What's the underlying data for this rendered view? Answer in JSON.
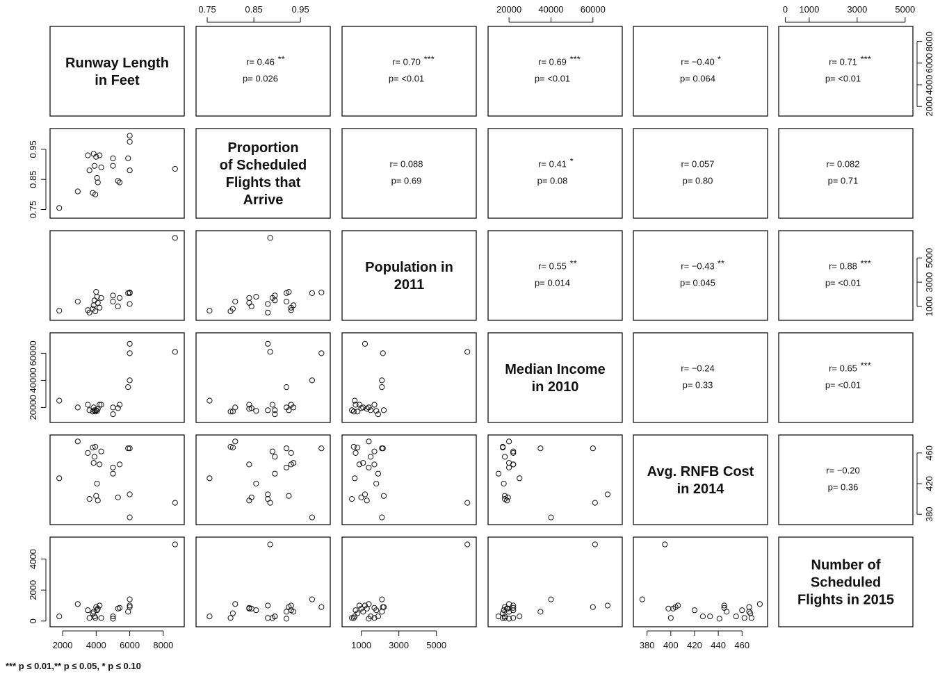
{
  "chart_data": {
    "type": "scatter",
    "variables": [
      {
        "label_lines": [
          "Runway Length",
          "in Feet"
        ],
        "ticks": [
          "2000",
          "4000",
          "6000",
          "8000"
        ]
      },
      {
        "label_lines": [
          "Proportion",
          "of Scheduled",
          "Flights that",
          "Arrive"
        ],
        "ticks": [
          "0.75",
          "0.85",
          "0.95"
        ]
      },
      {
        "label_lines": [
          "Population in",
          "2011"
        ],
        "ticks": [
          "1000",
          "3000",
          "5000"
        ]
      },
      {
        "label_lines": [
          "Median Income",
          "in 2010"
        ],
        "ticks": [
          "20000",
          "40000",
          "60000"
        ]
      },
      {
        "label_lines": [
          "Avg. RNFB Cost",
          "in 2014"
        ],
        "ticks": [
          "380",
          "400",
          "420",
          "440",
          "460"
        ]
      },
      {
        "label_lines": [
          "Number of",
          "Scheduled",
          "Flights in 2015"
        ],
        "ticks": [
          "0",
          "1000",
          "3000",
          "5000"
        ],
        "ticks_left": [
          "0",
          "2000",
          "4000"
        ]
      }
    ],
    "correlations": [
      {
        "pair": [
          0,
          1
        ],
        "r": "r= 0.46",
        "p": "p= 0.026",
        "stars": "**"
      },
      {
        "pair": [
          0,
          2
        ],
        "r": "r= 0.70",
        "p": "p= <0.01",
        "stars": "***"
      },
      {
        "pair": [
          0,
          3
        ],
        "r": "r= 0.69",
        "p": "p= <0.01",
        "stars": "***"
      },
      {
        "pair": [
          0,
          4
        ],
        "r": "r= −0.40",
        "p": "p= 0.064",
        "stars": "*"
      },
      {
        "pair": [
          0,
          5
        ],
        "r": "r= 0.71",
        "p": "p= <0.01",
        "stars": "***"
      },
      {
        "pair": [
          1,
          2
        ],
        "r": "r= 0.088",
        "p": "p= 0.69",
        "stars": ""
      },
      {
        "pair": [
          1,
          3
        ],
        "r": "r= 0.41",
        "p": "p= 0.08",
        "stars": "*"
      },
      {
        "pair": [
          1,
          4
        ],
        "r": "r= 0.057",
        "p": "p= 0.80",
        "stars": ""
      },
      {
        "pair": [
          1,
          5
        ],
        "r": "r= 0.082",
        "p": "p= 0.71",
        "stars": ""
      },
      {
        "pair": [
          2,
          3
        ],
        "r": "r= 0.55",
        "p": "p= 0.014",
        "stars": "**"
      },
      {
        "pair": [
          2,
          4
        ],
        "r": "r= −0.43",
        "p": "p= 0.045",
        "stars": "**"
      },
      {
        "pair": [
          2,
          5
        ],
        "r": "r= 0.88",
        "p": "p= <0.01",
        "stars": "***"
      },
      {
        "pair": [
          3,
          4
        ],
        "r": "r= −0.24",
        "p": "p= 0.33",
        "stars": ""
      },
      {
        "pair": [
          3,
          5
        ],
        "r": "r= 0.65",
        "p": "p= <0.01",
        "stars": "***"
      },
      {
        "pair": [
          4,
          5
        ],
        "r": "r= −0.20",
        "p": "p= 0.36",
        "stars": ""
      }
    ],
    "observations": [
      [
        1800,
        0.755,
        650,
        25000,
        427,
        300
      ],
      [
        2900,
        0.81,
        1400,
        20000,
        475,
        1100
      ],
      [
        3500,
        0.93,
        700,
        22000,
        460,
        700
      ],
      [
        3600,
        0.88,
        500,
        18000,
        400,
        200
      ],
      [
        3800,
        0.805,
        800,
        17000,
        467,
        500
      ],
      [
        3850,
        0.935,
        1100,
        20000,
        447,
        600
      ],
      [
        3900,
        0.895,
        1500,
        18000,
        455,
        300
      ],
      [
        3950,
        0.8,
        600,
        17000,
        468,
        200
      ],
      [
        4000,
        0.925,
        2200,
        18000,
        404,
        900
      ],
      [
        4050,
        0.855,
        1800,
        17500,
        420,
        700
      ],
      [
        4100,
        0.84,
        1300,
        19000,
        398,
        800
      ],
      [
        4200,
        0.93,
        900,
        22000,
        445,
        1000
      ],
      [
        4300,
        0.89,
        1700,
        22000,
        462,
        200
      ],
      [
        5000,
        0.895,
        1900,
        15000,
        433,
        300
      ],
      [
        5000,
        0.92,
        1400,
        20000,
        441,
        150
      ],
      [
        5300,
        0.845,
        1000,
        19500,
        402,
        800
      ],
      [
        5400,
        0.84,
        1700,
        22000,
        445,
        850
      ],
      [
        5900,
        0.92,
        2100,
        35000,
        466,
        600
      ],
      [
        6000,
        0.88,
        1200,
        67000,
        406,
        1000
      ],
      [
        6000,
        0.975,
        2100,
        40000,
        376,
        1400
      ],
      [
        6000,
        0.995,
        2150,
        60000,
        466,
        900
      ],
      [
        8700,
        0.885,
        6650,
        61000,
        395,
        4950
      ]
    ],
    "observations_note": "columns: runway, proportion, population, income, cost, flights"
  },
  "legend": {
    "significance": "*** p ≤ 0.01,** p ≤ 0.05,  * p ≤ 0.10"
  }
}
